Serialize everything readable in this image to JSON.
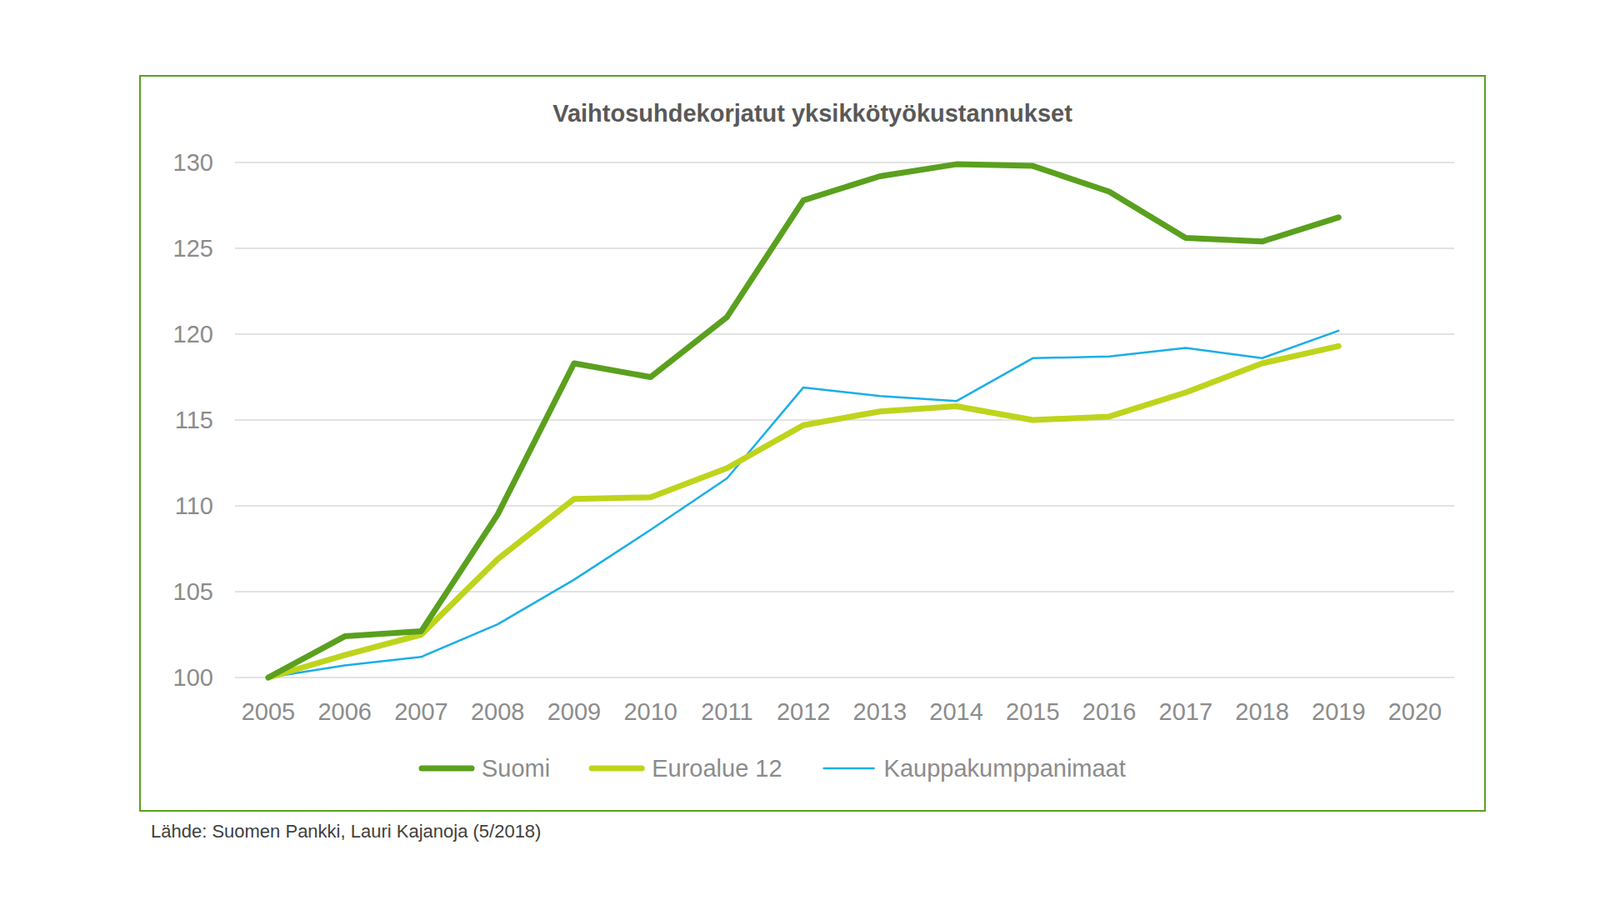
{
  "chart_data": {
    "type": "line",
    "title": "Vaihtosuhdekorjatut yksikkötyökustannukset",
    "source": "Lähde: Suomen Pankki, Lauri Kajanoja (5/2018)",
    "categories": [
      "2005",
      "2006",
      "2007",
      "2008",
      "2009",
      "2010",
      "2011",
      "2012",
      "2013",
      "2014",
      "2015",
      "2016",
      "2017",
      "2018",
      "2019",
      "2020"
    ],
    "series": [
      {
        "name": "Suomi",
        "color": "#5aa01e",
        "values": [
          100,
          102.4,
          102.7,
          109.5,
          118.3,
          117.5,
          121.0,
          127.8,
          129.2,
          129.9,
          129.8,
          128.3,
          125.6,
          125.4,
          126.8,
          null
        ]
      },
      {
        "name": "Euroalue 12",
        "color": "#bed41c",
        "values": [
          100,
          101.3,
          102.5,
          106.9,
          110.4,
          110.5,
          112.2,
          114.7,
          115.5,
          115.8,
          115.0,
          115.2,
          116.6,
          118.3,
          119.3,
          null
        ]
      },
      {
        "name": "Kauppakumppanimaat",
        "color": "#1aaee8",
        "values": [
          100,
          100.7,
          101.2,
          103.1,
          105.7,
          108.6,
          111.6,
          116.9,
          116.4,
          116.1,
          118.6,
          118.7,
          119.2,
          118.6,
          120.2,
          null
        ]
      }
    ],
    "ylim": [
      100,
      130
    ],
    "yticks": [
      100,
      105,
      110,
      115,
      120,
      125,
      130
    ],
    "grid": true,
    "legend": "bottom"
  }
}
